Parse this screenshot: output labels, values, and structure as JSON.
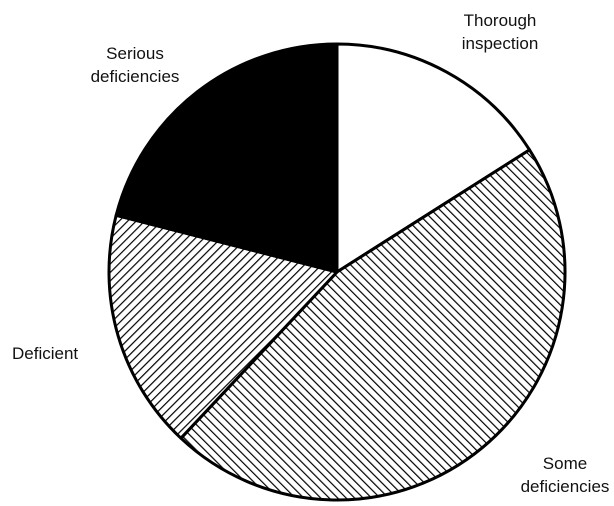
{
  "chart_data": {
    "type": "pie",
    "categories": [
      "Thorough inspection",
      "Some deficiencies",
      "Deficient",
      "Serious deficiencies"
    ],
    "values": [
      16,
      46,
      17,
      21
    ],
    "colors": [
      "#ffffff",
      "#000000",
      "#000000",
      "#000000"
    ],
    "patterns": [
      "solid",
      "hatch-back",
      "hatch-forward",
      "solid"
    ]
  }
}
